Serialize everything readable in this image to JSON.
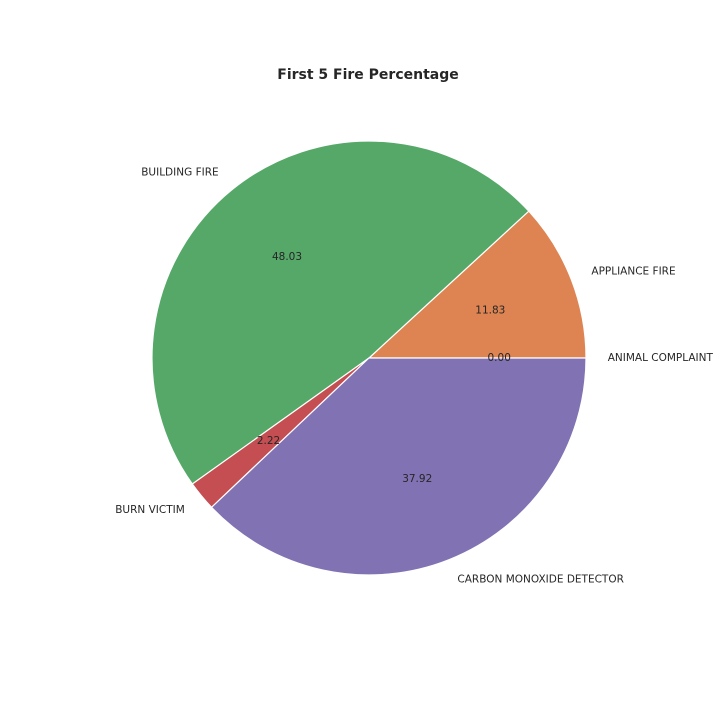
{
  "chart_data": {
    "type": "pie",
    "title": "First 5 Fire Percentage",
    "categories": [
      "ANIMAL COMPLAINT",
      "APPLIANCE FIRE",
      "BUILDING FIRE",
      "BURN VICTIM",
      "CARBON MONOXIDE DETECTOR"
    ],
    "values": [
      0.0,
      11.83,
      48.03,
      2.22,
      37.92
    ],
    "value_labels": [
      "0.00",
      "11.83",
      "48.03",
      "2.22",
      "37.92"
    ],
    "colors": [
      "#4c72b0",
      "#dd8452",
      "#55a868",
      "#c44e52",
      "#8172b3"
    ],
    "start_angle_deg": 0,
    "direction": "counterclockwise",
    "legend": "none"
  }
}
